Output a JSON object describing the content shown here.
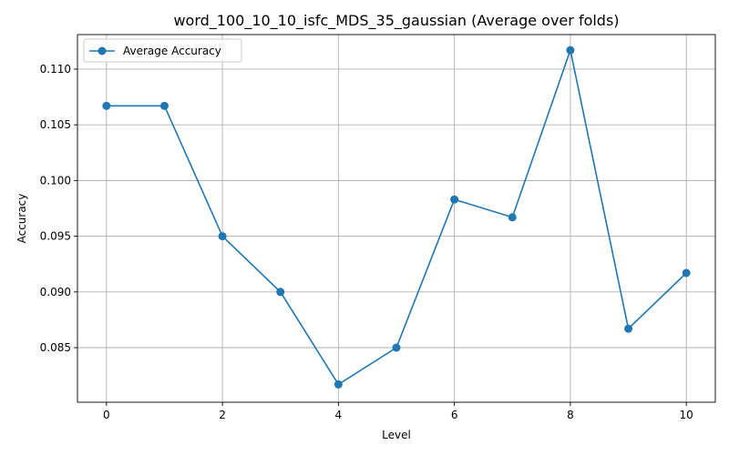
{
  "chart_data": {
    "type": "line",
    "title": "word_100_10_10_isfc_MDS_35_gaussian (Average over folds)",
    "xlabel": "Level",
    "ylabel": "Accuracy",
    "xlim": [
      -0.5,
      10.5
    ],
    "ylim": [
      0.0801,
      0.1131
    ],
    "xticks": [
      0,
      2,
      4,
      6,
      8,
      10
    ],
    "yticks": [
      0.085,
      0.09,
      0.095,
      0.1,
      0.105,
      0.11
    ],
    "ytick_labels": [
      "0.085",
      "0.090",
      "0.095",
      "0.100",
      "0.105",
      "0.110"
    ],
    "grid": true,
    "legend_position": "top-left",
    "series": [
      {
        "name": "Average Accuracy",
        "color": "#1f77b4",
        "marker": "circle",
        "x": [
          0,
          1,
          2,
          3,
          4,
          5,
          6,
          7,
          8,
          9,
          10
        ],
        "y": [
          0.1067,
          0.1067,
          0.095,
          0.09,
          0.0817,
          0.085,
          0.0983,
          0.0967,
          0.1117,
          0.0867,
          0.0917
        ]
      }
    ]
  }
}
